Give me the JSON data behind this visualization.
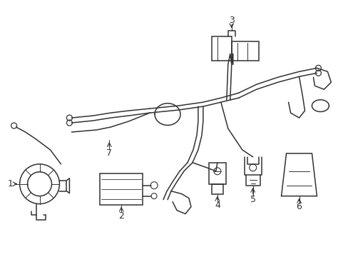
{
  "bg_color": "#ffffff",
  "line_color": "#333333",
  "lw": 1.1,
  "fig_w": 4.89,
  "fig_h": 3.6,
  "dpi": 100
}
